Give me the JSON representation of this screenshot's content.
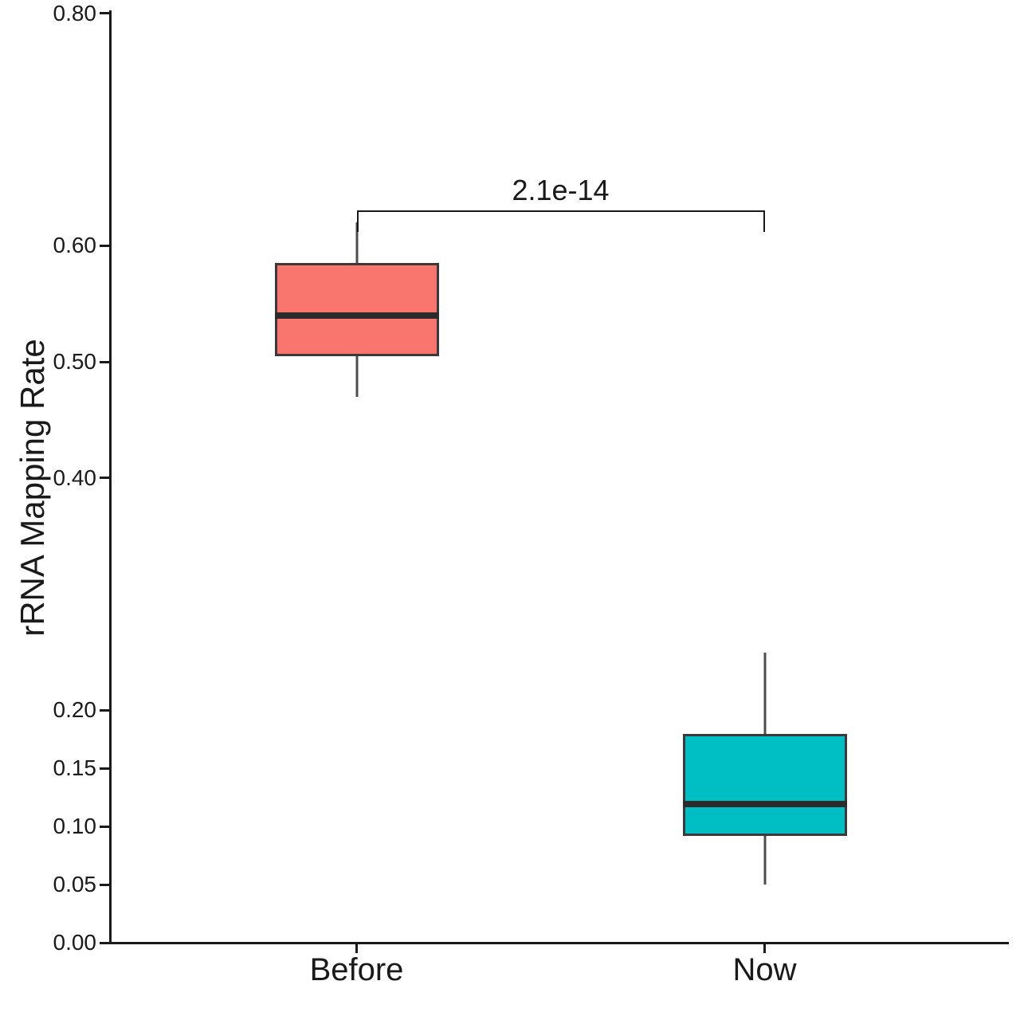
{
  "chart_data": {
    "type": "boxplot",
    "title": "",
    "xlabel": "",
    "ylabel": "rRNA Mapping Rate",
    "categories": [
      "Before",
      "Now"
    ],
    "series": [
      {
        "name": "Before",
        "whisker_low": 0.47,
        "q1": 0.505,
        "median": 0.54,
        "q3": 0.585,
        "whisker_high": 0.62,
        "fill_color": "#F8766D"
      },
      {
        "name": "Now",
        "whisker_low": 0.05,
        "q1": 0.092,
        "median": 0.119,
        "q3": 0.18,
        "whisker_high": 0.25,
        "fill_color": "#00BFC4"
      }
    ],
    "y_ticks": [
      {
        "value": 0.0,
        "label": "0.00"
      },
      {
        "value": 0.05,
        "label": "0.05"
      },
      {
        "value": 0.1,
        "label": "0.10"
      },
      {
        "value": 0.15,
        "label": "0.15"
      },
      {
        "value": 0.2,
        "label": "0.20"
      },
      {
        "value": 0.4,
        "label": "0.40"
      },
      {
        "value": 0.5,
        "label": "0.50"
      },
      {
        "value": 0.6,
        "label": "0.60"
      },
      {
        "value": 0.8,
        "label": "0.80"
      }
    ],
    "ylim": [
      0.0,
      0.8
    ],
    "grid": false,
    "legend_position": "none",
    "significance": {
      "label": "2.1e-14",
      "comparison": [
        "Before",
        "Now"
      ],
      "bracket_y": 0.63,
      "bracket_tick_drop": 0.018
    },
    "colors": {
      "box_border": "#3a3a3a",
      "median": "#2b2b2b",
      "whisker": "#4d4d4d",
      "axis": "#1a1a1a",
      "text": "#1a1a1a",
      "background": "#ffffff"
    }
  }
}
